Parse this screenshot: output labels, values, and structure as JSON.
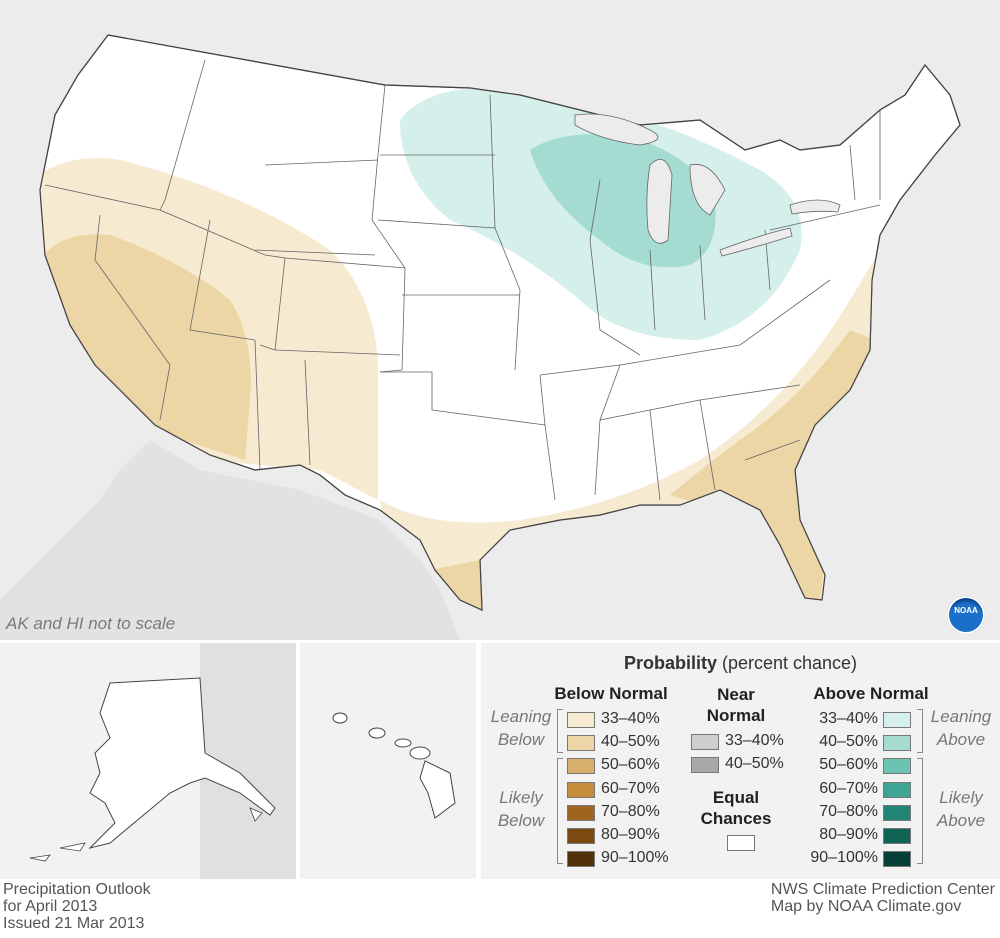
{
  "map": {
    "scale_note": "AK and HI not to scale",
    "logo_text": "NOAA"
  },
  "legend": {
    "title_bold": "Probability",
    "title_rest": "(percent chance)",
    "below_normal": {
      "heading": "Below Normal",
      "leaning_label_1": "Leaning",
      "leaning_label_2": "Below",
      "likely_label_1": "Likely",
      "likely_label_2": "Below",
      "ranges": [
        "33–40%",
        "40–50%",
        "50–60%",
        "60–70%",
        "70–80%",
        "80–90%",
        "90–100%"
      ],
      "colors": [
        "#f6ead0",
        "#ecd6a6",
        "#d9b06b",
        "#c48e3b",
        "#9f6520",
        "#7a4a10",
        "#52300a"
      ]
    },
    "near_normal": {
      "heading_1": "Near",
      "heading_2": "Normal",
      "ranges": [
        "33–40%",
        "40–50%"
      ],
      "colors": [
        "#cfcfcf",
        "#a8a8a8"
      ]
    },
    "equal_chances": {
      "heading_1": "Equal",
      "heading_2": "Chances",
      "color": "#ffffff"
    },
    "above_normal": {
      "heading": "Above Normal",
      "leaning_label_1": "Leaning",
      "leaning_label_2": "Above",
      "likely_label_1": "Likely",
      "likely_label_2": "Above",
      "ranges": [
        "33–40%",
        "40–50%",
        "50–60%",
        "60–70%",
        "70–80%",
        "80–90%",
        "90–100%"
      ],
      "colors": [
        "#d5efea",
        "#a5dcd2",
        "#6cc2b3",
        "#3ea595",
        "#218576",
        "#0f6454",
        "#063f35"
      ]
    }
  },
  "footer": {
    "left_1": "Precipitation Outlook",
    "left_2": "for April 2013",
    "left_3": "Issued 21 Mar 2013",
    "right_1": "NWS Climate Prediction Center",
    "right_2": "Map by NOAA Climate.gov"
  }
}
